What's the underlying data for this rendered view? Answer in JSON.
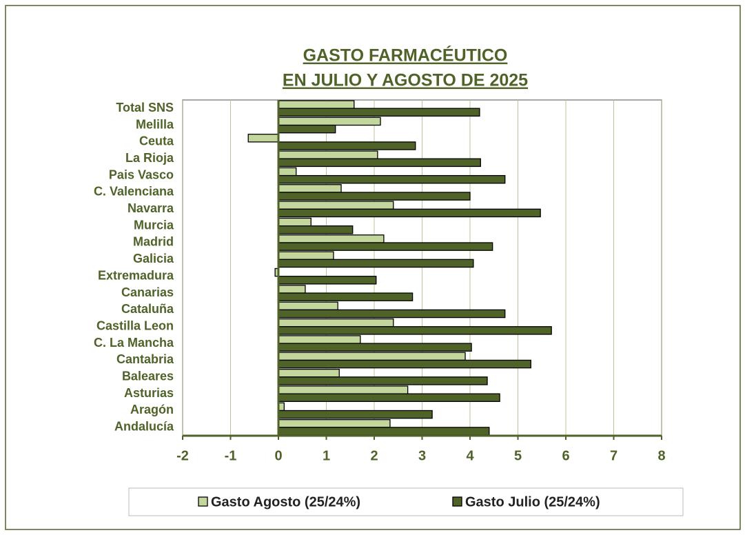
{
  "chart_data": {
    "type": "barh",
    "title": [
      "GASTO FARMACÉUTICO",
      "EN JULIO Y AGOSTO DE 2025"
    ],
    "categories": [
      "Total SNS",
      "Melilla",
      "Ceuta",
      "La Rioja",
      "Pais Vasco",
      "C. Valenciana",
      "Navarra",
      "Murcia",
      "Madrid",
      "Galicia",
      "Extremadura",
      "Canarias",
      "Cataluña",
      "Castilla Leon",
      "C. La Mancha",
      "Cantabria",
      "Baleares",
      "Asturias",
      "Aragón",
      "Andalucía"
    ],
    "series": [
      {
        "name": "Gasto Agosto (25/24%)",
        "color": "#c3d69b",
        "values": [
          1.58,
          2.13,
          -0.63,
          2.07,
          0.37,
          1.31,
          2.4,
          0.68,
          2.2,
          1.15,
          -0.07,
          0.56,
          1.24,
          2.4,
          1.71,
          3.9,
          1.27,
          2.7,
          0.12,
          2.33
        ]
      },
      {
        "name": "Gasto Julio (25/24%)",
        "color": "#4f6228",
        "values": [
          4.2,
          1.19,
          2.86,
          4.22,
          4.73,
          4.0,
          5.47,
          1.55,
          4.47,
          4.07,
          2.04,
          2.8,
          4.73,
          5.7,
          4.03,
          5.27,
          4.36,
          4.62,
          3.21,
          4.4
        ]
      }
    ],
    "xlim": [
      -2,
      8
    ],
    "xticks": [
      -2,
      -1,
      0,
      1,
      2,
      3,
      4,
      5,
      6,
      7,
      8
    ],
    "grid": true,
    "legend": "bottom"
  }
}
